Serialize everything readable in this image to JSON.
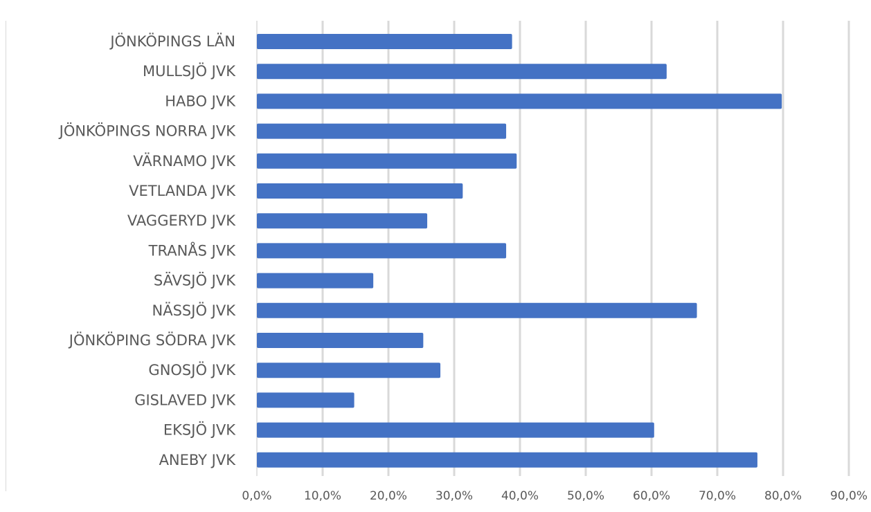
{
  "chart_data": {
    "type": "bar",
    "orientation": "horizontal",
    "title": "",
    "xlabel": "",
    "ylabel": "",
    "categories": [
      "JÖNKÖPINGS LÄN",
      "MULLSJÖ JVK",
      "HABO JVK",
      "JÖNKÖPINGS NORRA JVK",
      "VÄRNAMO JVK",
      "VETLANDA JVK",
      "VAGGERYD JVK",
      "TRANÅS JVK",
      "SÄVSJÖ JVK",
      "NÄSSJÖ JVK",
      "JÖNKÖPING SÖDRA JVK",
      "GNOSJÖ JVK",
      "GISLAVED JVK",
      "EKSJÖ JVK",
      "ANEBY JVK"
    ],
    "values": [
      38.8,
      62.3,
      79.8,
      37.9,
      39.5,
      31.3,
      25.9,
      37.9,
      17.7,
      66.9,
      25.3,
      27.9,
      14.8,
      60.4,
      76.1
    ],
    "xlim": [
      0,
      90
    ],
    "ticks": [
      0,
      10,
      20,
      30,
      40,
      50,
      60,
      70,
      80,
      90
    ],
    "tick_labels": [
      "0,0%",
      "10,0%",
      "20,0%",
      "30,0%",
      "40,0%",
      "50,0%",
      "60,0%",
      "70,0%",
      "80,0%",
      "90,0%"
    ],
    "grid": true,
    "legend": "none",
    "bar_color": "#4472C4",
    "grid_color": "#D9D9D9",
    "text_color": "#595959"
  }
}
